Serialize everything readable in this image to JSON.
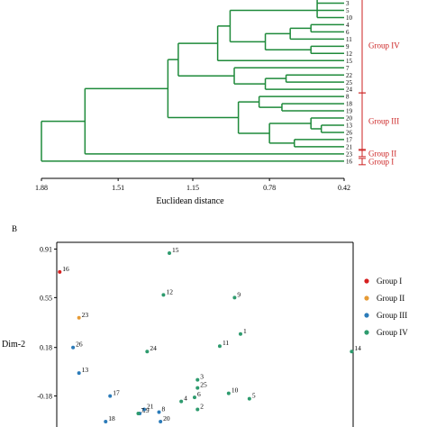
{
  "chart_data": [
    {
      "type": "dendrogram",
      "xlabel": "Euclidean distance",
      "xticks": [
        1.88,
        1.51,
        1.15,
        0.78,
        0.42
      ],
      "xlim": [
        1.88,
        0.42
      ],
      "leaves": [
        "3",
        "5",
        "10",
        "4",
        "6",
        "11",
        "9",
        "12",
        "15",
        "7",
        "22",
        "25",
        "24",
        "8",
        "18",
        "19",
        "20",
        "13",
        "26",
        "17",
        "21",
        "23",
        "16"
      ],
      "groups": [
        {
          "name": "Group IV",
          "color": "#cc2222"
        },
        {
          "name": "Group III",
          "color": "#cc2222"
        },
        {
          "name": "Group II",
          "color": "#cc2222"
        },
        {
          "name": "Group I",
          "color": "#cc2222"
        }
      ],
      "merges": [
        {
          "children": [
            "4",
            "6"
          ],
          "height": 0.58
        },
        {
          "children": [
            "9",
            "12"
          ],
          "height": 0.58
        },
        {
          "children": [
            "4-6",
            "11"
          ],
          "height": 0.68
        },
        {
          "children": [
            "4-6-11",
            "9-12"
          ],
          "height": 0.8
        },
        {
          "children": [
            "upper-IV",
            "4-12"
          ],
          "height": 0.97
        },
        {
          "children": [
            "upper-IV",
            "15"
          ],
          "height": 1.03
        },
        {
          "children": [
            "22",
            "25"
          ],
          "height": 0.7
        },
        {
          "children": [
            "22-25",
            "24"
          ],
          "height": 0.8
        },
        {
          "children": [
            "7",
            "22-24"
          ],
          "height": 0.95
        },
        {
          "children": [
            "IV-a",
            "IV-b"
          ],
          "height": 1.22
        },
        {
          "children": [
            "18",
            "19"
          ],
          "height": 0.72
        },
        {
          "children": [
            "8",
            "18-19"
          ],
          "height": 0.83
        },
        {
          "children": [
            "13",
            "26"
          ],
          "height": 0.53
        },
        {
          "children": [
            "20",
            "13-26"
          ],
          "height": 0.58
        },
        {
          "children": [
            "17",
            "21"
          ],
          "height": 0.66
        },
        {
          "children": [
            "20-26",
            "17-21"
          ],
          "height": 0.78
        },
        {
          "children": [
            "8-19",
            "20-21"
          ],
          "height": 0.93
        },
        {
          "children": [
            "IV",
            "III"
          ],
          "height": 1.27
        },
        {
          "children": [
            "IV-III",
            "23"
          ],
          "height": 1.67
        },
        {
          "children": [
            "IV-II",
            "16"
          ],
          "height": 1.88
        }
      ]
    },
    {
      "type": "scatter",
      "panel_label": "B",
      "ylabel": "Dim-2",
      "yticks": [
        0.91,
        0.55,
        0.18,
        -0.18
      ],
      "ylim": [
        -0.41,
        0.96
      ],
      "xlim": [
        -1.0,
        1.0
      ],
      "legend_position": "right",
      "series": [
        {
          "name": "Group I",
          "color": "#d62020",
          "points": [
            {
              "label": "16",
              "x": -0.98,
              "y": 0.74
            }
          ]
        },
        {
          "name": "Group II",
          "color": "#e69a35",
          "points": [
            {
              "label": "23",
              "x": -0.85,
              "y": 0.4
            }
          ]
        },
        {
          "name": "Group III",
          "color": "#2b7bb9",
          "points": [
            {
              "label": "26",
              "x": -0.89,
              "y": 0.18
            },
            {
              "label": "13",
              "x": -0.85,
              "y": -0.01
            },
            {
              "label": "17",
              "x": -0.64,
              "y": -0.18
            },
            {
              "label": "18",
              "x": -0.67,
              "y": -0.37
            },
            {
              "label": "19",
              "x": -0.44,
              "y": -0.31
            },
            {
              "label": "21",
              "x": -0.41,
              "y": -0.28
            },
            {
              "label": "8",
              "x": -0.31,
              "y": -0.3
            },
            {
              "label": "20",
              "x": -0.3,
              "y": -0.37
            }
          ]
        },
        {
          "name": "Group IV",
          "color": "#2e9b6e",
          "points": [
            {
              "label": "15",
              "x": -0.24,
              "y": 0.88
            },
            {
              "label": "12",
              "x": -0.28,
              "y": 0.57
            },
            {
              "label": "9",
              "x": 0.2,
              "y": 0.55
            },
            {
              "label": "1",
              "x": 0.24,
              "y": 0.28
            },
            {
              "label": "11",
              "x": 0.1,
              "y": 0.19
            },
            {
              "label": "14",
              "x": 0.99,
              "y": 0.15
            },
            {
              "label": "24",
              "x": -0.39,
              "y": 0.15
            },
            {
              "label": "3",
              "x": -0.05,
              "y": -0.06
            },
            {
              "label": "25",
              "x": -0.05,
              "y": -0.12
            },
            {
              "label": "6",
              "x": -0.07,
              "y": -0.19
            },
            {
              "label": "4",
              "x": -0.16,
              "y": -0.22
            },
            {
              "label": "10",
              "x": 0.16,
              "y": -0.16
            },
            {
              "label": "5",
              "x": 0.3,
              "y": -0.2
            },
            {
              "label": "2",
              "x": -0.05,
              "y": -0.28
            },
            {
              "label": "7",
              "x": -0.45,
              "y": -0.31
            }
          ]
        }
      ]
    }
  ]
}
